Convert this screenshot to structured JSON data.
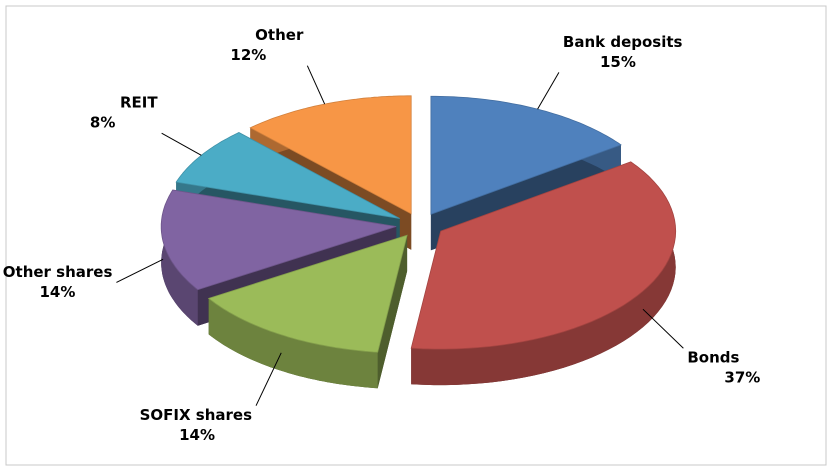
{
  "chart_data": {
    "type": "pie",
    "categories": [
      "Bank deposits",
      "Bonds",
      "SOFIX shares",
      "Other shares",
      "REIT",
      "Other"
    ],
    "values": [
      15,
      37,
      14,
      14,
      8,
      12
    ],
    "value_labels": [
      "15%",
      "37%",
      "14%",
      "14%",
      "8%",
      "12%"
    ],
    "colors": [
      "#4f81bd",
      "#c0504d",
      "#9bbb59",
      "#8064a2",
      "#4bacc6",
      "#f79646"
    ]
  }
}
